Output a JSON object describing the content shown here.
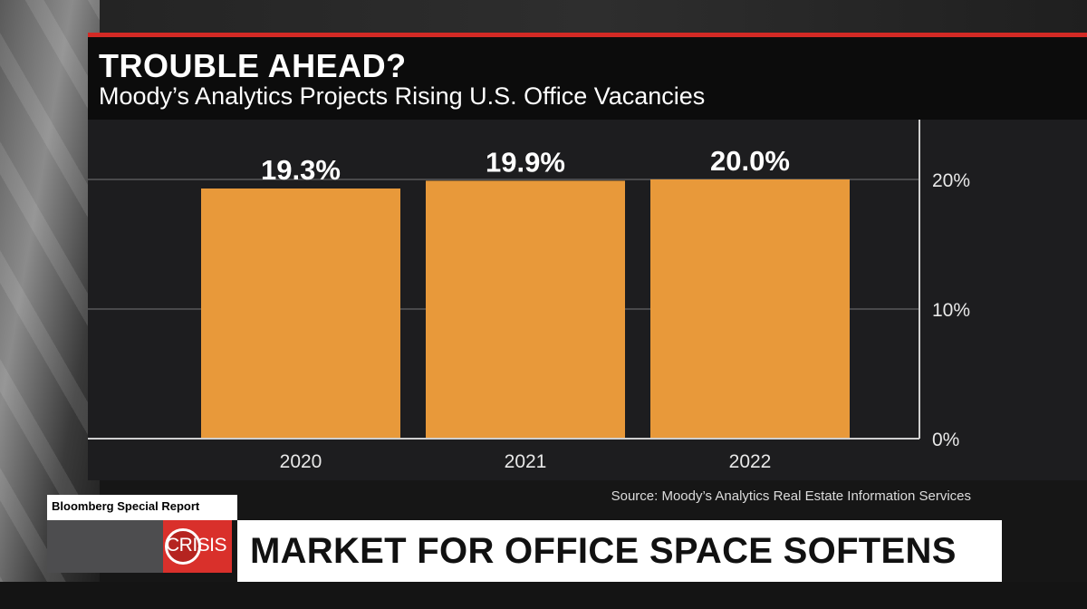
{
  "graphic": {
    "title": "TROUBLE AHEAD?",
    "subtitle": "Moody’s Analytics Projects Rising U.S. Office Vacancies",
    "source": "Source: Moody’s Analytics Real Estate Information Services"
  },
  "lower_third": {
    "brand": "Bloomberg Special Report",
    "topic": "CRISIS",
    "headline": "MARKET FOR OFFICE SPACE SOFTENS"
  },
  "colors": {
    "bar": "#e8993a",
    "accent_red": "#d32a25",
    "plot_bg": "#1d1d1f"
  },
  "chart_data": {
    "type": "bar",
    "categories": [
      "2020",
      "2021",
      "2022"
    ],
    "values": [
      19.3,
      19.9,
      20.0
    ],
    "data_labels": [
      "19.3%",
      "19.9%",
      "20.0%"
    ],
    "title": "TROUBLE AHEAD?",
    "subtitle": "Moody’s Analytics Projects Rising U.S. Office Vacancies",
    "xlabel": "",
    "ylabel": "",
    "ylim": [
      0,
      20
    ],
    "yticks": [
      0,
      10,
      20
    ],
    "ytick_labels": [
      "0%",
      "10%",
      "20%"
    ],
    "y_axis_position": "right",
    "grid": true,
    "legend": "none"
  }
}
